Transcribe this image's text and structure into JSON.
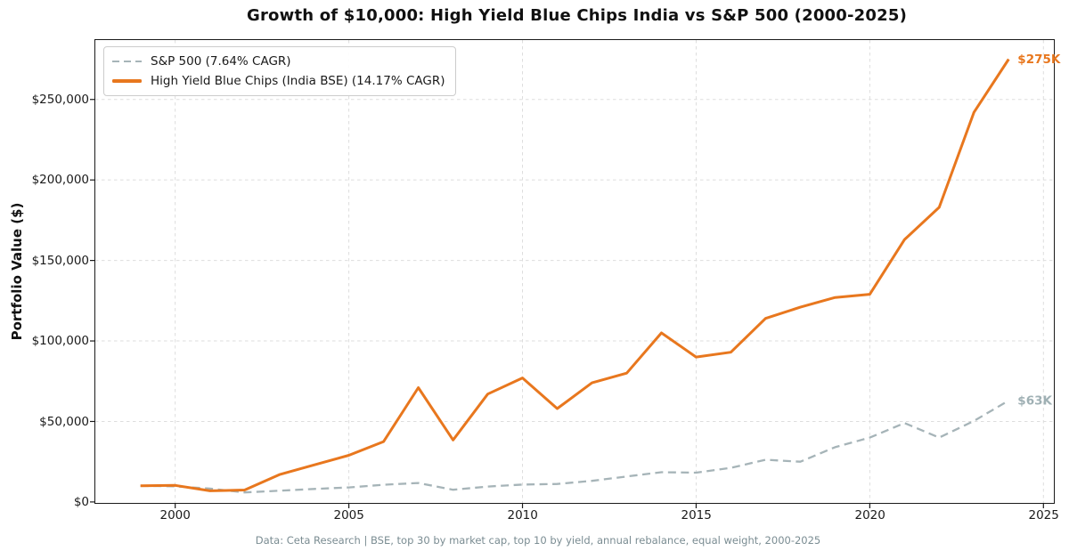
{
  "title": "Growth of $10,000: High Yield Blue Chips India vs S&P 500 (2000-2025)",
  "y_axis_label": "Portfolio Value ($)",
  "footer": "Data: Ceta Research | BSE, top 30 by market cap, top 10 by yield, annual rebalance, equal weight, 2000-2025",
  "legend": {
    "position": "upper-left",
    "items": [
      {
        "label": "S&P 500 (7.64% CAGR)",
        "color": "#A6B4B8",
        "style": "dashed"
      },
      {
        "label": "High Yield Blue Chips (India BSE) (14.17% CAGR)",
        "color": "#E8771E",
        "style": "solid"
      }
    ]
  },
  "chart_data": {
    "type": "line",
    "title": "Growth of $10,000: High Yield Blue Chips India vs S&P 500 (2000-2025)",
    "xlabel": "",
    "ylabel": "Portfolio Value ($)",
    "grid": true,
    "grid_color": "#DDDDDD",
    "axis_color": "#1A1A1A",
    "legend_position": "upper-left",
    "xlim": [
      1997.7,
      2025.3
    ],
    "ylim": [
      -600,
      286900
    ],
    "x": [
      1999,
      2000,
      2001,
      2002,
      2003,
      2004,
      2005,
      2006,
      2007,
      2008,
      2009,
      2010,
      2011,
      2012,
      2013,
      2014,
      2015,
      2016,
      2017,
      2018,
      2019,
      2020,
      2021,
      2022,
      2023,
      2024
    ],
    "series": [
      {
        "id": "sp500",
        "name": "S&P 500 (7.64% CAGR)",
        "color": "#A6B4B8",
        "dash": "9 5.5",
        "width": 2.3,
        "end_label": "$63K",
        "end_label_color": "#9FB0B4",
        "values": [
          10000,
          9700,
          8300,
          5900,
          7000,
          8100,
          9000,
          10700,
          11800,
          7600,
          9600,
          10800,
          11200,
          13100,
          15800,
          18500,
          18200,
          21200,
          26200,
          25000,
          34000,
          40000,
          49000,
          40000,
          50300,
          63000
        ]
      },
      {
        "id": "hyb-india",
        "name": "High Yield Blue Chips (India BSE) (14.17% CAGR)",
        "color": "#E8771E",
        "dash": "",
        "width": 3,
        "end_label": "$275K",
        "end_label_color": "#E8771E",
        "values": [
          10000,
          10300,
          6900,
          7400,
          17000,
          23000,
          29000,
          37500,
          71000,
          38500,
          67000,
          77000,
          58000,
          74000,
          80000,
          105000,
          90000,
          93000,
          114000,
          121000,
          127000,
          129000,
          163000,
          183000,
          242000,
          275000
        ]
      }
    ],
    "xticks": [
      {
        "value": 2000,
        "label": "2000"
      },
      {
        "value": 2005,
        "label": "2005"
      },
      {
        "value": 2010,
        "label": "2010"
      },
      {
        "value": 2015,
        "label": "2015"
      },
      {
        "value": 2020,
        "label": "2020"
      },
      {
        "value": 2025,
        "label": "2025"
      }
    ],
    "yticks": [
      {
        "value": 0,
        "label": "$0"
      },
      {
        "value": 50000,
        "label": "$50,000"
      },
      {
        "value": 100000,
        "label": "$100,000"
      },
      {
        "value": 150000,
        "label": "$150,000"
      },
      {
        "value": 200000,
        "label": "$200,000"
      },
      {
        "value": 250000,
        "label": "$250,000"
      }
    ]
  }
}
